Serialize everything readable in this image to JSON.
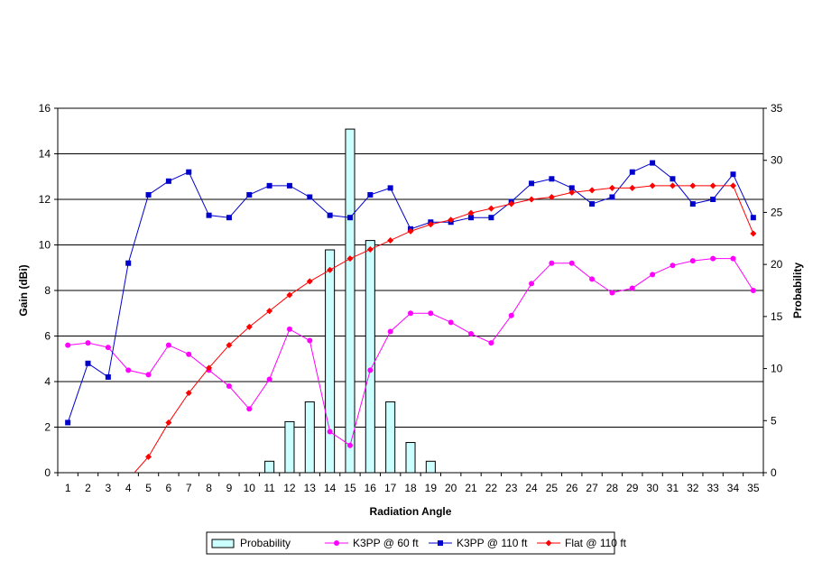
{
  "chart_data": {
    "type": "bar+line",
    "title": "",
    "xlabel": "Radiation Angle",
    "ylabel": "Gain (dBi)",
    "y2label": "Probability",
    "categories": [
      "1",
      "2",
      "3",
      "4",
      "5",
      "6",
      "7",
      "8",
      "9",
      "10",
      "11",
      "12",
      "13",
      "14",
      "15",
      "16",
      "17",
      "18",
      "19",
      "20",
      "21",
      "22",
      "23",
      "24",
      "25",
      "26",
      "27",
      "28",
      "29",
      "30",
      "31",
      "32",
      "33",
      "34",
      "35"
    ],
    "ylim": [
      0,
      16
    ],
    "y2lim": [
      0,
      35
    ],
    "yticks": [
      "0",
      "2",
      "4",
      "6",
      "8",
      "10",
      "12",
      "14",
      "16"
    ],
    "y2ticks": [
      "0",
      "5",
      "10",
      "15",
      "20",
      "25",
      "30",
      "35"
    ],
    "grid": true,
    "legend_position": "bottom",
    "bar_series": {
      "name": "Probability",
      "axis": "right",
      "color": "#ccffff",
      "values": [
        0,
        0,
        0,
        0,
        0,
        0,
        0,
        0,
        0,
        0,
        1.1,
        4.9,
        6.8,
        21.4,
        33,
        22.3,
        6.8,
        2.9,
        1.1,
        0,
        0,
        0,
        0,
        0,
        0,
        0,
        0,
        0,
        0,
        0,
        0,
        0,
        0,
        0,
        0
      ]
    },
    "line_series": [
      {
        "name": "K3PP @ 60 ft",
        "axis": "left",
        "color": "#ff00ff",
        "marker": "circle",
        "values": [
          5.6,
          5.7,
          5.5,
          4.5,
          4.3,
          5.6,
          5.2,
          4.5,
          3.8,
          2.8,
          4.1,
          6.3,
          5.8,
          1.8,
          1.2,
          4.5,
          6.2,
          7,
          7,
          6.6,
          6.1,
          5.7,
          6.9,
          8.3,
          9.2,
          9.2,
          8.5,
          7.9,
          8.1,
          8.7,
          9.1,
          9.3,
          9.4,
          9.4,
          8
        ]
      },
      {
        "name": "K3PP @ 110 ft",
        "axis": "left",
        "color": "#0000cc",
        "marker": "square",
        "values": [
          2.2,
          4.8,
          4.2,
          9.2,
          12.2,
          12.8,
          13.2,
          11.3,
          11.2,
          12.2,
          12.6,
          12.6,
          12.1,
          11.3,
          11.2,
          12.2,
          12.5,
          10.7,
          11,
          11,
          11.2,
          11.2,
          11.9,
          12.7,
          12.9,
          12.5,
          11.8,
          12.1,
          13.2,
          13.6,
          12.9,
          11.8,
          12,
          13.1,
          11.2
        ]
      },
      {
        "name": "Flat @ 110 ft",
        "axis": "left",
        "color": "#ff0000",
        "marker": "diamond",
        "start_value": -0.3,
        "values": [
          null,
          null,
          null,
          null,
          0.7,
          2.2,
          3.5,
          4.6,
          5.6,
          6.4,
          7.1,
          7.8,
          8.4,
          8.9,
          9.4,
          9.8,
          10.2,
          10.6,
          10.9,
          11.1,
          11.4,
          11.6,
          11.8,
          12,
          12.1,
          12.3,
          12.4,
          12.5,
          12.5,
          12.6,
          12.6,
          12.6,
          12.6,
          12.6,
          10.5
        ]
      }
    ]
  }
}
